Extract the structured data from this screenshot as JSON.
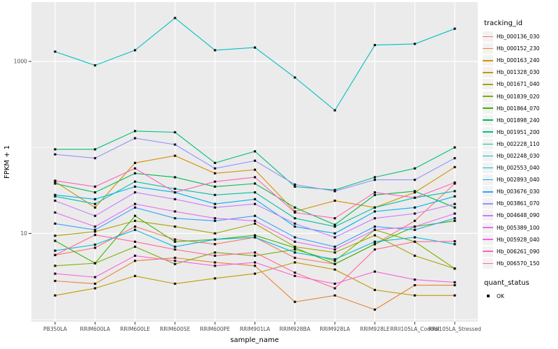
{
  "chart_data": {
    "type": "line",
    "xlabel": "sample_name",
    "ylabel": "FPKM + 1",
    "y_scale": "log10",
    "y_labeled_ticks": [
      1000,
      10
    ],
    "y_minor_gridlines": [
      100,
      1
    ],
    "ylim": [
      0.94,
      4600
    ],
    "legend_title": "tracking_id",
    "legend2_title": "quant_status",
    "legend2_items": [
      {
        "label": "OK",
        "marker": "black-square"
      }
    ],
    "point_marker": "black-square",
    "categories": [
      "PB350LA",
      "RRIM600LA",
      "RRIM600LE",
      "RRIM600SE",
      "RRIM600PE",
      "RRIM901LA",
      "RRIM928BA",
      "RRIM928LA",
      "RRIM928LE",
      "RRII105LA_Control",
      "RRII105LA_Stressed"
    ],
    "series": [
      {
        "name": "Hb_000136_030",
        "color": "#F8766D",
        "values": [
          5.6,
          6.8,
          12,
          8.5,
          7.5,
          9,
          5.2,
          4.4,
          7.5,
          14,
          38
        ]
      },
      {
        "name": "Hb_000152_230",
        "color": "#EA8331",
        "values": [
          2.8,
          2.6,
          4.8,
          5.2,
          4.6,
          4.2,
          1.6,
          1.9,
          1.3,
          2.5,
          2.5
        ]
      },
      {
        "name": "Hb_000163_240",
        "color": "#D89000",
        "values": [
          40,
          20,
          66,
          80,
          50,
          55,
          18,
          24,
          20,
          30,
          59
        ]
      },
      {
        "name": "Hb_001328_030",
        "color": "#C09B00",
        "values": [
          1.9,
          2.3,
          3.2,
          2.6,
          3.0,
          3.4,
          4.6,
          3.8,
          2.2,
          1.9,
          1.9
        ]
      },
      {
        "name": "Hb_001671_040",
        "color": "#A3A500",
        "values": [
          9.4,
          10.5,
          14,
          12,
          10,
          13,
          7,
          6,
          9.5,
          5.5,
          3.9
        ]
      },
      {
        "name": "Hb_001839_020",
        "color": "#7CAE00",
        "values": [
          4.2,
          4.5,
          7,
          4.4,
          6,
          5.5,
          6.5,
          4.8,
          11,
          8,
          3.9
        ]
      },
      {
        "name": "Hb_001864_070",
        "color": "#39B600",
        "values": [
          8.2,
          4.5,
          16,
          8,
          8.5,
          9.5,
          6.8,
          4.4,
          7.5,
          12,
          14
        ]
      },
      {
        "name": "Hb_001898_240",
        "color": "#00BB4E",
        "values": [
          38,
          30,
          50,
          45,
          35,
          38,
          20,
          12.6,
          28,
          31,
          20
        ]
      },
      {
        "name": "Hb_001951_200",
        "color": "#00BF7D",
        "values": [
          95,
          95,
          155,
          150,
          66,
          90,
          35,
          32,
          45,
          57,
          100
        ]
      },
      {
        "name": "Hb_002228_110",
        "color": "#00C1A3",
        "values": [
          27,
          22,
          40,
          33,
          28,
          30,
          15,
          12,
          20,
          26,
          31
        ]
      },
      {
        "name": "Hb_002248_030",
        "color": "#00BFC4",
        "values": [
          1300,
          900,
          1350,
          3200,
          1350,
          1450,
          650,
          270,
          1550,
          1600,
          2400
        ]
      },
      {
        "name": "Hb_002553_040",
        "color": "#00BAE0",
        "values": [
          6.3,
          7.4,
          11,
          7,
          8.5,
          9,
          6,
          5,
          8,
          9,
          7.5
        ]
      },
      {
        "name": "Hb_002893_040",
        "color": "#00B0F6",
        "values": [
          28,
          25,
          35,
          30,
          22,
          25,
          12,
          10,
          18,
          20,
          27
        ]
      },
      {
        "name": "Hb_003676_030",
        "color": "#35A2FF",
        "values": [
          13,
          11,
          20,
          15,
          14,
          16,
          9,
          7,
          12,
          11,
          15
        ]
      },
      {
        "name": "Hb_003861_070",
        "color": "#9590FF",
        "values": [
          83,
          75,
          128,
          108,
          57,
          70,
          37,
          31,
          42,
          42,
          75
        ]
      },
      {
        "name": "Hb_004648_090",
        "color": "#C77CFF",
        "values": [
          24,
          16,
          30,
          25,
          20,
          22,
          13,
          9,
          15,
          17,
          22
        ]
      },
      {
        "name": "Hb_005389_100",
        "color": "#E76BF3",
        "values": [
          17.5,
          12,
          22,
          18,
          15,
          14,
          8,
          6.5,
          11,
          12,
          17
        ]
      },
      {
        "name": "Hb_005928_040",
        "color": "#FA62DB",
        "values": [
          3.4,
          3.1,
          5.5,
          4.8,
          4.2,
          4.6,
          3.2,
          2.6,
          3.6,
          2.9,
          2.7
        ]
      },
      {
        "name": "Hb_006261_090",
        "color": "#FF62BC",
        "values": [
          41,
          35,
          57,
          30,
          40,
          45,
          17.5,
          15,
          30,
          26,
          39
        ]
      },
      {
        "name": "Hb_006570_150",
        "color": "#FF6A98",
        "values": [
          5.6,
          9.6,
          8,
          6.5,
          5.5,
          6,
          3.5,
          2.3,
          6.5,
          8,
          8.1
        ]
      }
    ]
  },
  "colors": {
    "panel_bg": "#EBEBEB",
    "gridline": "#FFFFFF",
    "axis_text": "#4D4D4D",
    "title_text": "#000000",
    "legend_key_bg": "#F2F2F2",
    "point": "#111111",
    "tick_mark": "#333333"
  }
}
